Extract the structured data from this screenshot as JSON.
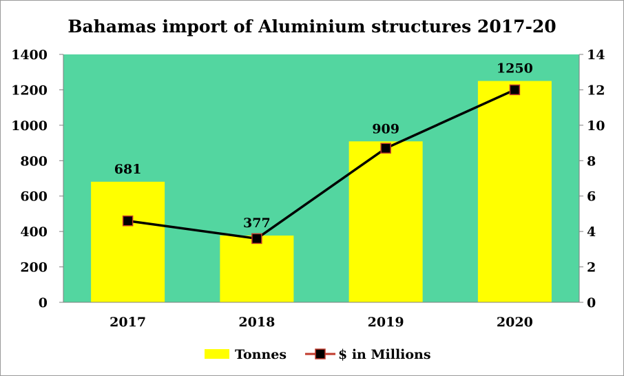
{
  "chart_data": {
    "type": "bar",
    "title": "Bahamas import of Aluminium structures 2017-20",
    "categories": [
      "2017",
      "2018",
      "2019",
      "2020"
    ],
    "series": [
      {
        "name": "Tonnes",
        "type": "bar",
        "axis": "left",
        "values": [
          681,
          377,
          909,
          1250
        ],
        "data_labels": [
          "681",
          "377",
          "909",
          "1250"
        ],
        "color": "#ffff00"
      },
      {
        "name": "$ in Millions",
        "type": "line",
        "axis": "right",
        "values": [
          4.6,
          3.6,
          8.7,
          12.0
        ],
        "color": "#000000",
        "marker_color": "#000000",
        "marker_border": "#c0392b"
      }
    ],
    "y_left": {
      "ylim": [
        0,
        1400
      ],
      "ticks": [
        "0",
        "200",
        "400",
        "600",
        "800",
        "1000",
        "1200",
        "1400"
      ]
    },
    "y_right": {
      "ylim": [
        0,
        14
      ],
      "ticks": [
        "0",
        "2",
        "4",
        "6",
        "8",
        "10",
        "12",
        "14"
      ]
    },
    "plot_background": "#53d6a0",
    "grid": false,
    "legend_position": "bottom"
  }
}
